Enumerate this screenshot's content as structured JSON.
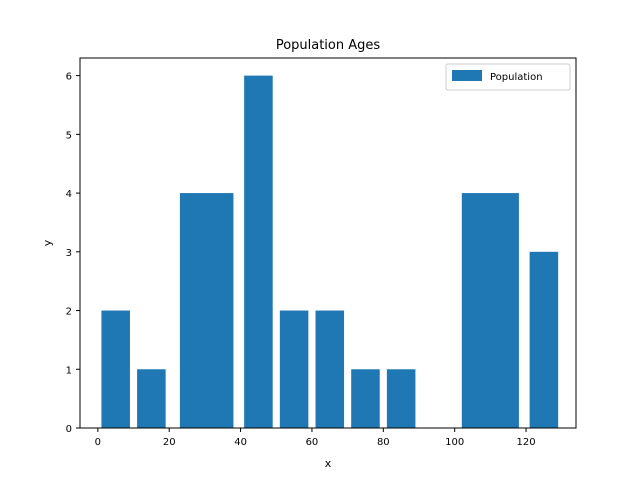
{
  "chart_data": {
    "type": "bar",
    "title": "Population Ages",
    "xlabel": "x",
    "ylabel": "y",
    "xlim": [
      -5,
      134
    ],
    "ylim": [
      0,
      6.3
    ],
    "xticks": [
      0,
      20,
      40,
      60,
      80,
      100,
      120
    ],
    "yticks": [
      0,
      1,
      2,
      3,
      4,
      5,
      6
    ],
    "legend_position": "top-right",
    "series": [
      {
        "name": "Population",
        "color": "#1f77b4",
        "bars": [
          {
            "x0": 1,
            "x1": 9,
            "value": 2
          },
          {
            "x0": 11,
            "x1": 19,
            "value": 1
          },
          {
            "x0": 23,
            "x1": 38,
            "value": 4
          },
          {
            "x0": 41,
            "x1": 49,
            "value": 6
          },
          {
            "x0": 51,
            "x1": 59,
            "value": 2
          },
          {
            "x0": 61,
            "x1": 69,
            "value": 2
          },
          {
            "x0": 71,
            "x1": 79,
            "value": 1
          },
          {
            "x0": 81,
            "x1": 89,
            "value": 1
          },
          {
            "x0": 102,
            "x1": 118,
            "value": 4
          },
          {
            "x0": 121,
            "x1": 129,
            "value": 3
          }
        ]
      }
    ]
  }
}
